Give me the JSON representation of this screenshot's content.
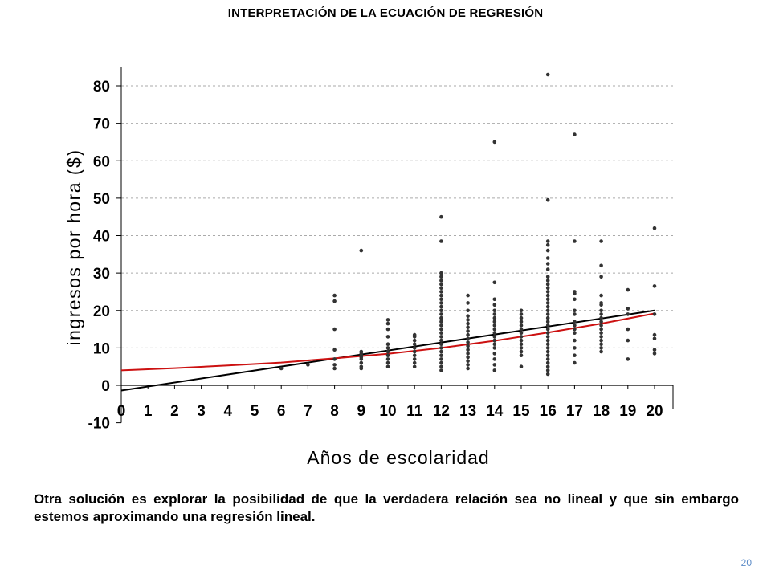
{
  "slide": {
    "title": "INTERPRETACIÓN DE LA ECUACIÓN DE REGRESIÓN",
    "caption": "Otra solución es explorar la posibilidad de que la verdadera relación sea no lineal y que sin embargo estemos aproximando una regresión lineal.",
    "page_number": "20"
  },
  "chart_data": {
    "type": "scatter",
    "title": "",
    "xlabel": "Años de escolaridad",
    "ylabel": "ingresos por hora ($)",
    "xlim": [
      0,
      20
    ],
    "ylim": [
      -10,
      85
    ],
    "x_ticks": [
      0,
      1,
      2,
      3,
      4,
      5,
      6,
      7,
      8,
      9,
      10,
      11,
      12,
      13,
      14,
      15,
      16,
      17,
      18,
      19,
      20
    ],
    "y_ticks": [
      -10,
      0,
      10,
      20,
      30,
      40,
      50,
      60,
      70,
      80
    ],
    "grid": "horizontal dashed",
    "colors": {
      "points": "#333333",
      "linear_fit": "#000000",
      "curve_fit": "#cc1111",
      "grid": "#aaaaaa"
    },
    "series": [
      {
        "type": "scatter",
        "points": [
          [
            6,
            4.5
          ],
          [
            7,
            5.5
          ],
          [
            8,
            4.5
          ],
          [
            8,
            5.5
          ],
          [
            8,
            7
          ],
          [
            8,
            9.5
          ],
          [
            8,
            15
          ],
          [
            8,
            22.5
          ],
          [
            8,
            24
          ],
          [
            9,
            4.5
          ],
          [
            9,
            5
          ],
          [
            9,
            6
          ],
          [
            9,
            7
          ],
          [
            9,
            7.5
          ],
          [
            9,
            8
          ],
          [
            9,
            8.5
          ],
          [
            9,
            9
          ],
          [
            9,
            36
          ],
          [
            10,
            5
          ],
          [
            10,
            6
          ],
          [
            10,
            7
          ],
          [
            10,
            8
          ],
          [
            10,
            9
          ],
          [
            10,
            10
          ],
          [
            10,
            11
          ],
          [
            10,
            13
          ],
          [
            10,
            15
          ],
          [
            10,
            16.5
          ],
          [
            10,
            17.5
          ],
          [
            11,
            5
          ],
          [
            11,
            6
          ],
          [
            11,
            7
          ],
          [
            11,
            8
          ],
          [
            11,
            9
          ],
          [
            11,
            10
          ],
          [
            11,
            11
          ],
          [
            11,
            12
          ],
          [
            11,
            13
          ],
          [
            11,
            13.5
          ],
          [
            12,
            4
          ],
          [
            12,
            5
          ],
          [
            12,
            6
          ],
          [
            12,
            7
          ],
          [
            12,
            8
          ],
          [
            12,
            9
          ],
          [
            12,
            10
          ],
          [
            12,
            11
          ],
          [
            12,
            12
          ],
          [
            12,
            13
          ],
          [
            12,
            14
          ],
          [
            12,
            15
          ],
          [
            12,
            16
          ],
          [
            12,
            17
          ],
          [
            12,
            18
          ],
          [
            12,
            19
          ],
          [
            12,
            20
          ],
          [
            12,
            21
          ],
          [
            12,
            22
          ],
          [
            12,
            23
          ],
          [
            12,
            24
          ],
          [
            12,
            25
          ],
          [
            12,
            26
          ],
          [
            12,
            27
          ],
          [
            12,
            28
          ],
          [
            12,
            29
          ],
          [
            12,
            30
          ],
          [
            12,
            38.5
          ],
          [
            12,
            45
          ],
          [
            13,
            4.5
          ],
          [
            13,
            5.5
          ],
          [
            13,
            6.5
          ],
          [
            13,
            7.5
          ],
          [
            13,
            8.5
          ],
          [
            13,
            9.5
          ],
          [
            13,
            10.5
          ],
          [
            13,
            11.5
          ],
          [
            13,
            12.5
          ],
          [
            13,
            13.5
          ],
          [
            13,
            14.5
          ],
          [
            13,
            15.5
          ],
          [
            13,
            16.5
          ],
          [
            13,
            17.5
          ],
          [
            13,
            18.5
          ],
          [
            13,
            20
          ],
          [
            13,
            22
          ],
          [
            13,
            24
          ],
          [
            14,
            4
          ],
          [
            14,
            5.5
          ],
          [
            14,
            7
          ],
          [
            14,
            8.5
          ],
          [
            14,
            10
          ],
          [
            14,
            11
          ],
          [
            14,
            12
          ],
          [
            14,
            13
          ],
          [
            14,
            14
          ],
          [
            14,
            15
          ],
          [
            14,
            16
          ],
          [
            14,
            17
          ],
          [
            14,
            18
          ],
          [
            14,
            19
          ],
          [
            14,
            20
          ],
          [
            14,
            21.5
          ],
          [
            14,
            23
          ],
          [
            14,
            27.5
          ],
          [
            14,
            65
          ],
          [
            15,
            5
          ],
          [
            15,
            8
          ],
          [
            15,
            9
          ],
          [
            15,
            10
          ],
          [
            15,
            11
          ],
          [
            15,
            12
          ],
          [
            15,
            13
          ],
          [
            15,
            14
          ],
          [
            15,
            15
          ],
          [
            15,
            16
          ],
          [
            15,
            17
          ],
          [
            15,
            18
          ],
          [
            15,
            19
          ],
          [
            15,
            20
          ],
          [
            16,
            3
          ],
          [
            16,
            4
          ],
          [
            16,
            5
          ],
          [
            16,
            6
          ],
          [
            16,
            7
          ],
          [
            16,
            8
          ],
          [
            16,
            9
          ],
          [
            16,
            10
          ],
          [
            16,
            11
          ],
          [
            16,
            12
          ],
          [
            16,
            13
          ],
          [
            16,
            14
          ],
          [
            16,
            15
          ],
          [
            16,
            16
          ],
          [
            16,
            17
          ],
          [
            16,
            18
          ],
          [
            16,
            19
          ],
          [
            16,
            20
          ],
          [
            16,
            21
          ],
          [
            16,
            22
          ],
          [
            16,
            23
          ],
          [
            16,
            24
          ],
          [
            16,
            25
          ],
          [
            16,
            26
          ],
          [
            16,
            27
          ],
          [
            16,
            28
          ],
          [
            16,
            29
          ],
          [
            16,
            31
          ],
          [
            16,
            32.5
          ],
          [
            16,
            34
          ],
          [
            16,
            36
          ],
          [
            16,
            37.5
          ],
          [
            16,
            38.5
          ],
          [
            16,
            49.5
          ],
          [
            16,
            83
          ],
          [
            17,
            6
          ],
          [
            17,
            8
          ],
          [
            17,
            10
          ],
          [
            17,
            12
          ],
          [
            17,
            14
          ],
          [
            17,
            15
          ],
          [
            17,
            16
          ],
          [
            17,
            17
          ],
          [
            17,
            19
          ],
          [
            17,
            20
          ],
          [
            17,
            23
          ],
          [
            17,
            24.5
          ],
          [
            17,
            25
          ],
          [
            17,
            38.5
          ],
          [
            17,
            67
          ],
          [
            18,
            9
          ],
          [
            18,
            10
          ],
          [
            18,
            11
          ],
          [
            18,
            12
          ],
          [
            18,
            13
          ],
          [
            18,
            14
          ],
          [
            18,
            15
          ],
          [
            18,
            16
          ],
          [
            18,
            17
          ],
          [
            18,
            18
          ],
          [
            18,
            19
          ],
          [
            18,
            20
          ],
          [
            18,
            21.5
          ],
          [
            18,
            22
          ],
          [
            18,
            24
          ],
          [
            18,
            29
          ],
          [
            18,
            32
          ],
          [
            18,
            38.5
          ],
          [
            19,
            7
          ],
          [
            19,
            12
          ],
          [
            19,
            15
          ],
          [
            19,
            19
          ],
          [
            19,
            20.5
          ],
          [
            19,
            25.5
          ],
          [
            20,
            8.5
          ],
          [
            20,
            9.5
          ],
          [
            20,
            12.5
          ],
          [
            20,
            13.5
          ],
          [
            20,
            19
          ],
          [
            20,
            26.5
          ],
          [
            20,
            42
          ]
        ]
      },
      {
        "type": "line",
        "points": [
          [
            0,
            -1.4
          ],
          [
            20,
            20
          ]
        ]
      },
      {
        "type": "line",
        "points": [
          [
            0,
            4
          ],
          [
            2,
            4.6
          ],
          [
            4,
            5.3
          ],
          [
            6,
            6.1
          ],
          [
            8,
            7.2
          ],
          [
            10,
            8.4
          ],
          [
            12,
            10
          ],
          [
            14,
            11.9
          ],
          [
            16,
            14.1
          ],
          [
            18,
            16.5
          ],
          [
            20,
            19.2
          ]
        ]
      }
    ]
  }
}
